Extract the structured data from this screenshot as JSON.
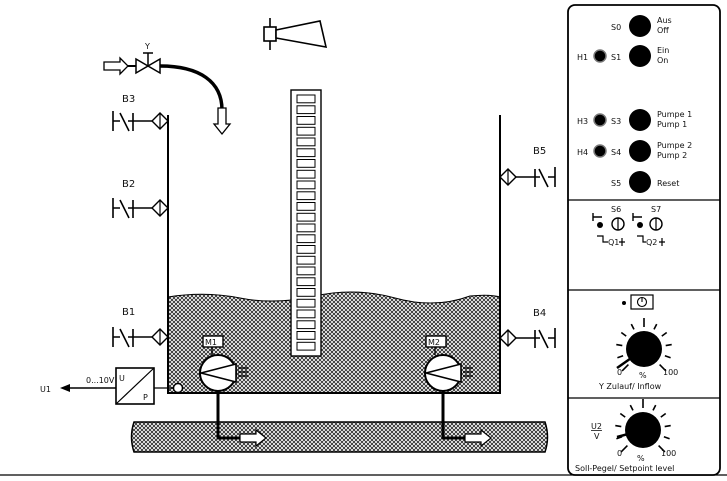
{
  "plant": {
    "valve_label": "Y",
    "sensors": {
      "b3": "B3",
      "b2": "B2",
      "b1": "B1",
      "b5": "B5",
      "b4": "B4"
    },
    "motors": {
      "m1": "M1",
      "m2": "M2"
    },
    "converter_range": "0...10V",
    "converter_in": "U",
    "converter_out": "P",
    "output_signal": "U1",
    "level_gauge_segments": 24
  },
  "panel": {
    "s0": {
      "label": "S0",
      "line1": "Aus",
      "line2": "Off"
    },
    "h1": "H1",
    "s1": {
      "label": "S1",
      "line1": "Ein",
      "line2": "On"
    },
    "h3": "H3",
    "s3": {
      "label": "S3",
      "line1": "Pumpe 1",
      "line2": "Pump 1"
    },
    "h4": "H4",
    "s4": {
      "label": "S4",
      "line1": "Pumpe 2",
      "line2": "Pump 2"
    },
    "s5": {
      "label": "S5",
      "line1": "Reset"
    },
    "s6": "S6",
    "s7": "S7",
    "q1": "Q1",
    "q2": "Q2",
    "inflow_knob": {
      "min": "0",
      "unit": "%",
      "max": "100",
      "caption": "Y Zulauf/ Inflow"
    },
    "setpoint_knob": {
      "input": "U2",
      "input_unit": "V",
      "min": "0",
      "unit": "%",
      "max": "100",
      "caption": "Soll-Pegel/ Setpoint level"
    }
  }
}
